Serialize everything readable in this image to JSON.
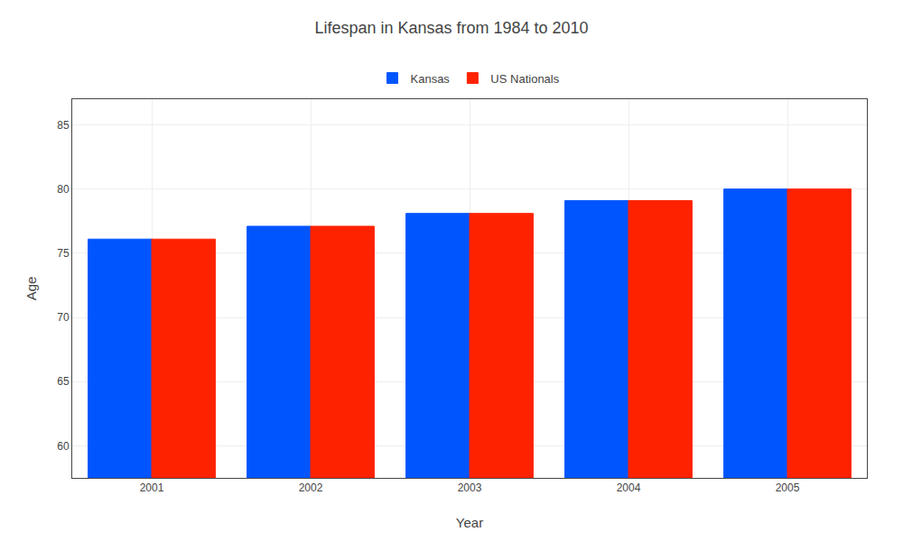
{
  "chart_data": {
    "type": "bar",
    "title": "Lifespan in Kansas from 1984 to 2010",
    "x_label": "Year",
    "y_label": "Age",
    "categories": [
      "2001",
      "2002",
      "2003",
      "2004",
      "2005"
    ],
    "series": [
      {
        "name": "Kansas",
        "color": "#0055ff",
        "values": [
          76.1,
          77.1,
          78.1,
          79.1,
          80.0
        ]
      },
      {
        "name": "US Nationals",
        "color": "#ff2200",
        "values": [
          76.1,
          77.1,
          78.1,
          79.1,
          80.0
        ]
      }
    ],
    "ylim": [
      57.5,
      87
    ],
    "yticks": [
      60,
      65,
      70,
      75,
      80,
      85
    ],
    "grid": true,
    "legend": "top"
  }
}
